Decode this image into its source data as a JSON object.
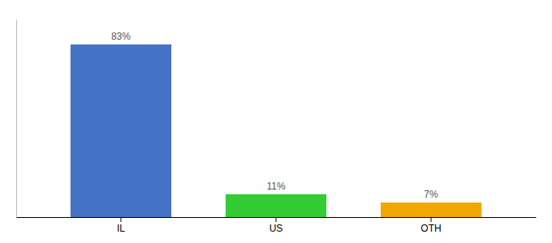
{
  "chart_data": {
    "type": "bar",
    "categories": [
      "IL",
      "US",
      "OTH"
    ],
    "values": [
      83,
      11,
      7
    ],
    "value_labels": [
      "83%",
      "11%",
      "7%"
    ],
    "colors": [
      "#4472c4",
      "#33cc33",
      "#f0a800"
    ],
    "data_labels": true,
    "ylim": [
      0,
      95
    ],
    "tick_labels": "x",
    "grid": false
  }
}
